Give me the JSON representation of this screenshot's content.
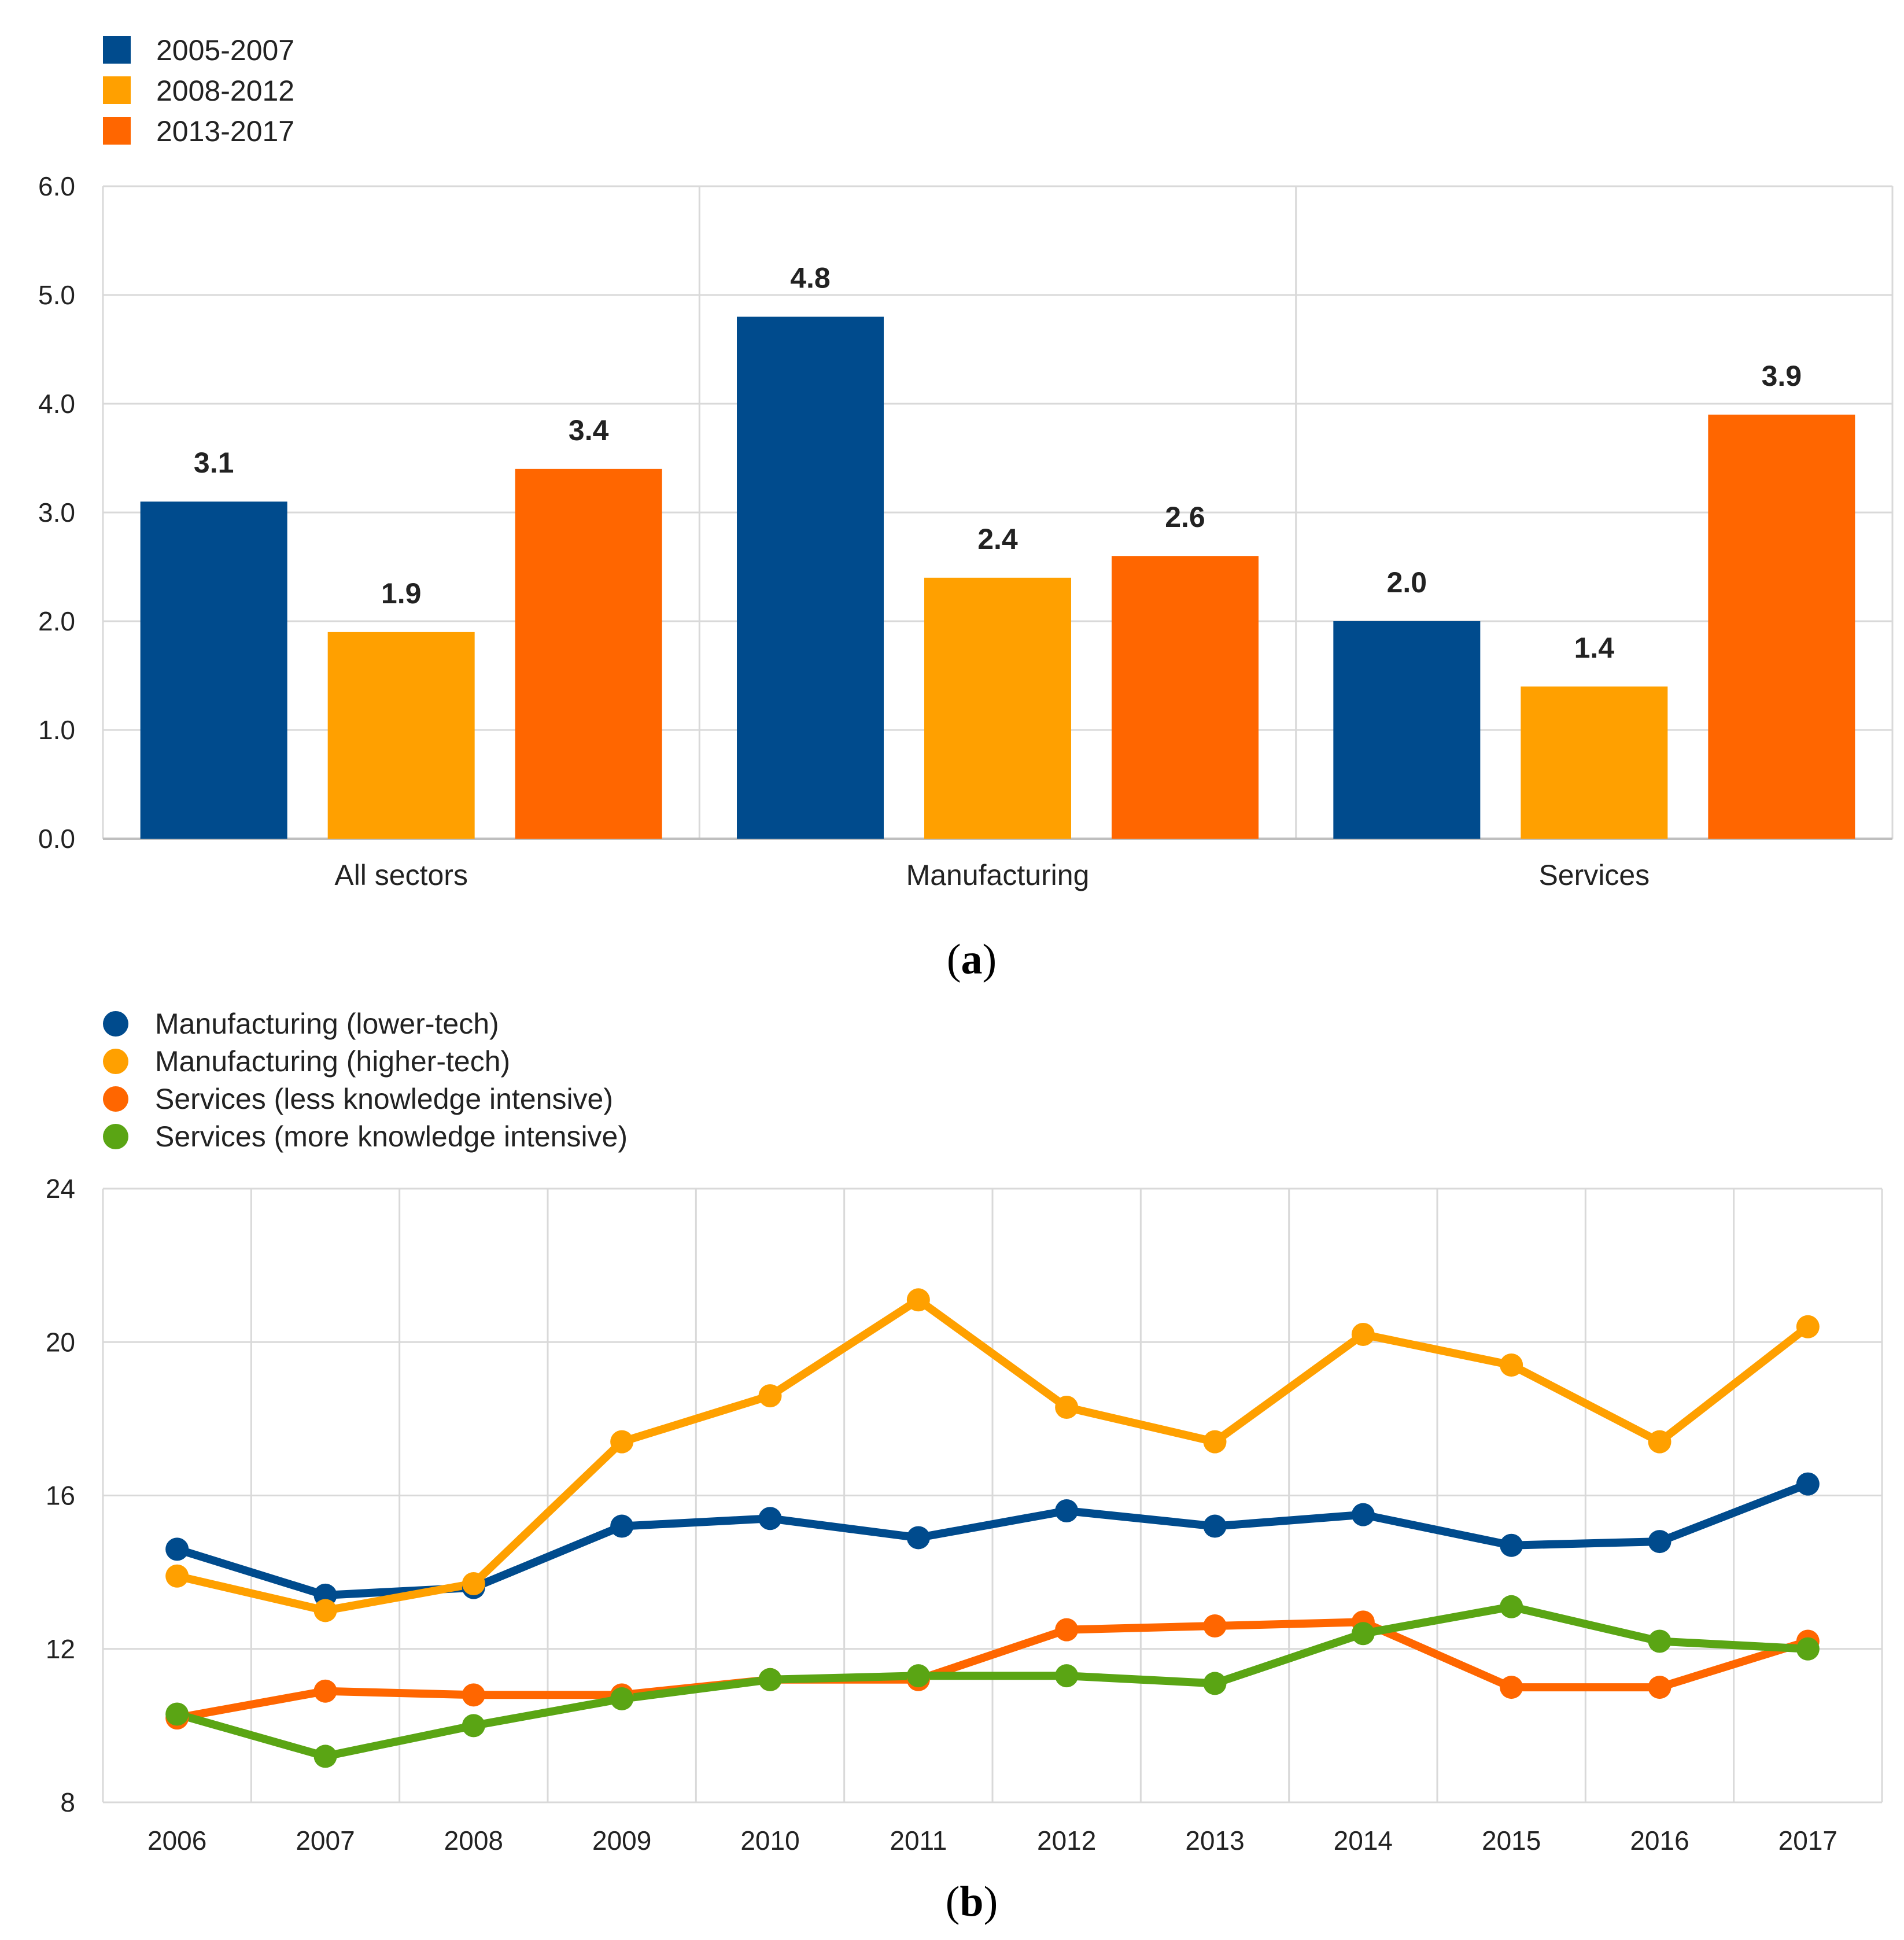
{
  "colors": {
    "navy": "#004b8d",
    "amber": "#ffa000",
    "orange": "#ff6600",
    "green": "#5aa514",
    "grid": "#d9d9d9",
    "axis": "#bfbfbf"
  },
  "panel_a": {
    "caption": {
      "open": "(",
      "letter": "a",
      "close": ")"
    }
  },
  "panel_b": {
    "caption": {
      "open": "(",
      "letter": "b",
      "close": ")"
    }
  },
  "chart_data": [
    {
      "type": "bar",
      "title": "",
      "xlabel": "",
      "ylabel": "",
      "ylim": [
        0,
        6
      ],
      "yticks": [
        "0.0",
        "1.0",
        "2.0",
        "3.0",
        "4.0",
        "5.0",
        "6.0"
      ],
      "grid": true,
      "legend_position": "top-left",
      "categories": [
        "All sectors",
        "Manufacturing",
        "Services"
      ],
      "series": [
        {
          "name": "2005-2007",
          "color": "#004b8d",
          "values": [
            3.1,
            4.8,
            2.0
          ],
          "labels": [
            "3.1",
            "4.8",
            "2.0"
          ]
        },
        {
          "name": "2008-2012",
          "color": "#ffa000",
          "values": [
            1.9,
            2.4,
            1.4
          ],
          "labels": [
            "1.9",
            "2.4",
            "1.4"
          ]
        },
        {
          "name": "2013-2017",
          "color": "#ff6600",
          "values": [
            3.4,
            2.6,
            3.9
          ],
          "labels": [
            "3.4",
            "2.6",
            "3.9"
          ]
        }
      ]
    },
    {
      "type": "line",
      "title": "",
      "xlabel": "",
      "ylabel": "",
      "ylim": [
        8,
        24
      ],
      "yticks": [
        "8",
        "12",
        "16",
        "20",
        "24"
      ],
      "grid": true,
      "legend_position": "top-left",
      "x": [
        "2006",
        "2007",
        "2008",
        "2009",
        "2010",
        "2011",
        "2012",
        "2013",
        "2014",
        "2015",
        "2016",
        "2017"
      ],
      "series": [
        {
          "name": "Manufacturing (lower-tech)",
          "color": "#004b8d",
          "values": [
            14.6,
            13.4,
            13.6,
            15.2,
            15.4,
            14.9,
            15.6,
            15.2,
            15.5,
            14.7,
            14.8,
            16.3
          ]
        },
        {
          "name": "Manufacturing (higher-tech)",
          "color": "#ffa000",
          "values": [
            13.9,
            13.0,
            13.7,
            17.4,
            18.6,
            21.1,
            18.3,
            17.4,
            20.2,
            19.4,
            17.4,
            20.4
          ]
        },
        {
          "name": "Services (less knowledge intensive)",
          "color": "#ff6600",
          "values": [
            10.2,
            10.9,
            10.8,
            10.8,
            11.2,
            11.2,
            12.5,
            12.6,
            12.7,
            11.0,
            11.0,
            12.2
          ]
        },
        {
          "name": "Services (more knowledge intensive)",
          "color": "#5aa514",
          "values": [
            10.3,
            9.2,
            10.0,
            10.7,
            11.2,
            11.3,
            11.3,
            11.1,
            12.4,
            13.1,
            12.2,
            12.0
          ]
        }
      ]
    }
  ]
}
